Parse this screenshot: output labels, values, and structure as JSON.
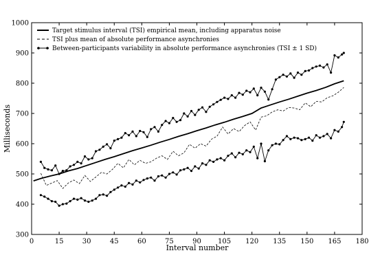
{
  "chart_data": {
    "type": "line",
    "title": "",
    "xlabel": "Interval number",
    "ylabel": "Milliseconds",
    "xlim": [
      0,
      180
    ],
    "ylim": [
      300,
      1000
    ],
    "xticks": [
      0,
      15,
      30,
      45,
      60,
      75,
      90,
      105,
      120,
      135,
      150,
      165,
      180
    ],
    "yticks": [
      300,
      400,
      500,
      600,
      700,
      800,
      900,
      1000
    ],
    "grid": false,
    "legend_position": "top-left",
    "series": [
      {
        "name": "Target stimulus interval (TSI) empirical mean, including apparatus noise",
        "style": "solid-thick",
        "x": [
          1,
          5,
          10,
          15,
          20,
          25,
          30,
          35,
          40,
          45,
          50,
          55,
          60,
          65,
          70,
          75,
          80,
          85,
          90,
          95,
          100,
          105,
          110,
          115,
          120,
          125,
          130,
          135,
          140,
          145,
          150,
          155,
          160,
          165,
          170
        ],
        "values": [
          477,
          485,
          493,
          500,
          510,
          518,
          528,
          538,
          548,
          557,
          567,
          577,
          586,
          595,
          605,
          614,
          624,
          633,
          643,
          652,
          662,
          671,
          681,
          690,
          700,
          718,
          728,
          738,
          747,
          757,
          767,
          776,
          786,
          798,
          808
        ]
      },
      {
        "name": "TSI plus mean of absolute performance asynchronies",
        "style": "dashed",
        "x": [
          5,
          8,
          11,
          14,
          17,
          20,
          23,
          26,
          29,
          32,
          35,
          38,
          41,
          44,
          47,
          50,
          53,
          56,
          59,
          62,
          65,
          68,
          71,
          74,
          77,
          80,
          83,
          86,
          89,
          92,
          95,
          98,
          101,
          104,
          107,
          110,
          113,
          116,
          119,
          122,
          125,
          128,
          131,
          134,
          137,
          140,
          143,
          146,
          149,
          152,
          155,
          158,
          161,
          164,
          167,
          170
        ],
        "values": [
          502,
          462,
          470,
          478,
          452,
          470,
          480,
          468,
          495,
          475,
          490,
          505,
          500,
          515,
          535,
          520,
          548,
          530,
          545,
          535,
          540,
          552,
          560,
          548,
          575,
          560,
          570,
          598,
          585,
          600,
          592,
          615,
          625,
          655,
          632,
          650,
          640,
          660,
          672,
          645,
          688,
          692,
          705,
          712,
          708,
          720,
          718,
          712,
          735,
          722,
          740,
          738,
          752,
          758,
          770,
          786
        ]
      },
      {
        "name": "Between-participants variability in absolute performance asynchronies (TSI ± 1 SD)",
        "style": "solid-markers",
        "bands": [
          {
            "label": "upper",
            "x": [
              5,
              7,
              9,
              11,
              13,
              15,
              17,
              19,
              21,
              23,
              25,
              27,
              29,
              31,
              33,
              35,
              37,
              39,
              41,
              43,
              45,
              47,
              49,
              51,
              53,
              55,
              57,
              59,
              61,
              63,
              65,
              67,
              69,
              71,
              73,
              75,
              77,
              79,
              81,
              83,
              85,
              87,
              89,
              91,
              93,
              95,
              97,
              99,
              101,
              103,
              105,
              107,
              109,
              111,
              113,
              115,
              117,
              119,
              121,
              123,
              125,
              127,
              129,
              131,
              133,
              135,
              137,
              139,
              141,
              143,
              145,
              147,
              149,
              151,
              153,
              155,
              157,
              159,
              161,
              163,
              165,
              167,
              169,
              170
            ],
            "values": [
              540,
              520,
              515,
              512,
              528,
              500,
              510,
              512,
              525,
              530,
              540,
              535,
              558,
              548,
              552,
              575,
              580,
              590,
              598,
              585,
              610,
              615,
              620,
              635,
              628,
              640,
              625,
              642,
              638,
              622,
              648,
              655,
              640,
              662,
              675,
              668,
              685,
              672,
              678,
              700,
              690,
              708,
              695,
              712,
              720,
              705,
              722,
              730,
              738,
              745,
              752,
              748,
              760,
              752,
              768,
              762,
              775,
              770,
              782,
              760,
              785,
              772,
              746,
              780,
              812,
              820,
              828,
              822,
              832,
              818,
              835,
              828,
              840,
              842,
              850,
              855,
              858,
              852,
              862,
              835,
              892,
              885,
              895,
              900
            ]
          },
          {
            "label": "lower",
            "x": [
              5,
              7,
              9,
              11,
              13,
              15,
              17,
              19,
              21,
              23,
              25,
              27,
              29,
              31,
              33,
              35,
              37,
              39,
              41,
              43,
              45,
              47,
              49,
              51,
              53,
              55,
              57,
              59,
              61,
              63,
              65,
              67,
              69,
              71,
              73,
              75,
              77,
              79,
              81,
              83,
              85,
              87,
              89,
              91,
              93,
              95,
              97,
              99,
              101,
              103,
              105,
              107,
              109,
              111,
              113,
              115,
              117,
              119,
              121,
              123,
              125,
              127,
              129,
              131,
              133,
              135,
              137,
              139,
              141,
              143,
              145,
              147,
              149,
              151,
              153,
              155,
              157,
              159,
              161,
              163,
              165,
              167,
              169,
              170
            ],
            "values": [
              430,
              425,
              418,
              410,
              408,
              395,
              400,
              402,
              410,
              418,
              415,
              420,
              412,
              408,
              412,
              418,
              430,
              432,
              428,
              440,
              448,
              455,
              462,
              458,
              470,
              465,
              478,
              472,
              480,
              485,
              488,
              478,
              492,
              495,
              488,
              500,
              505,
              498,
              512,
              515,
              520,
              510,
              525,
              518,
              535,
              530,
              545,
              540,
              548,
              552,
              545,
              560,
              568,
              555,
              570,
              565,
              578,
              572,
              590,
              552,
              600,
              542,
              578,
              595,
              600,
              598,
              612,
              625,
              615,
              620,
              618,
              612,
              615,
              620,
              610,
              628,
              620,
              625,
              632,
              618,
              645,
              640,
              655,
              672
            ]
          }
        ]
      }
    ]
  }
}
